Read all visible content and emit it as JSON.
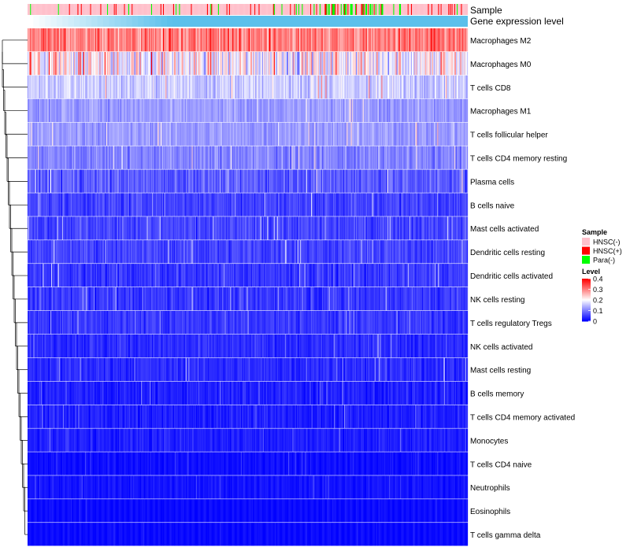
{
  "chart_data": {
    "type": "heatmap",
    "annotation_tracks": [
      "Sample",
      "Gene expression level"
    ],
    "rows": [
      {
        "label": "Macrophages M2",
        "mean": 0.3,
        "spread": 0.1
      },
      {
        "label": "Macrophages M0",
        "mean": 0.2,
        "spread": 0.16
      },
      {
        "label": "T cells CD8",
        "mean": 0.16,
        "spread": 0.07
      },
      {
        "label": "Macrophages M1",
        "mean": 0.12,
        "spread": 0.05
      },
      {
        "label": "T cells follicular helper",
        "mean": 0.12,
        "spread": 0.05
      },
      {
        "label": "T cells CD4 memory resting",
        "mean": 0.1,
        "spread": 0.06
      },
      {
        "label": "Plasma cells",
        "mean": 0.07,
        "spread": 0.07
      },
      {
        "label": "B cells naive",
        "mean": 0.05,
        "spread": 0.05
      },
      {
        "label": "Mast cells activated",
        "mean": 0.05,
        "spread": 0.05
      },
      {
        "label": "Dendritic cells resting",
        "mean": 0.05,
        "spread": 0.05
      },
      {
        "label": "Dendritic cells activated",
        "mean": 0.04,
        "spread": 0.05
      },
      {
        "label": "NK cells resting",
        "mean": 0.04,
        "spread": 0.05
      },
      {
        "label": "T cells regulatory  Tregs",
        "mean": 0.04,
        "spread": 0.04
      },
      {
        "label": "NK cells activated",
        "mean": 0.03,
        "spread": 0.04
      },
      {
        "label": "Mast cells resting",
        "mean": 0.03,
        "spread": 0.04
      },
      {
        "label": "B cells memory",
        "mean": 0.02,
        "spread": 0.04
      },
      {
        "label": "T cells CD4 memory activated",
        "mean": 0.02,
        "spread": 0.04
      },
      {
        "label": "Monocytes",
        "mean": 0.02,
        "spread": 0.03
      },
      {
        "label": "T cells CD4 naive",
        "mean": 0.005,
        "spread": 0.02
      },
      {
        "label": "Neutrophils",
        "mean": 0.01,
        "spread": 0.02
      },
      {
        "label": "Eosinophils",
        "mean": 0.003,
        "spread": 0.01
      },
      {
        "label": "T cells gamma delta",
        "mean": 0.002,
        "spread": 0.01
      }
    ],
    "n_samples": 520,
    "color_scale": {
      "min": 0,
      "max": 0.4,
      "low": "#0000ff",
      "mid": "#ffffff",
      "high": "#ff0000",
      "mid_value": 0.2
    },
    "legend": {
      "sample_title": "Sample",
      "sample_groups": [
        {
          "label": "HNSC(-)",
          "color": "#ffc0cb"
        },
        {
          "label": "HNSC(+)",
          "color": "#ff0000"
        },
        {
          "label": "Para(-)",
          "color": "#00ff00"
        }
      ],
      "level_title": "Level",
      "level_ticks": [
        "0.4",
        "0.3",
        "0.2",
        "0.1",
        "0"
      ],
      "placement": "right"
    },
    "gene_expression_color": "#5bc0eb",
    "dendrogram": "rows"
  }
}
